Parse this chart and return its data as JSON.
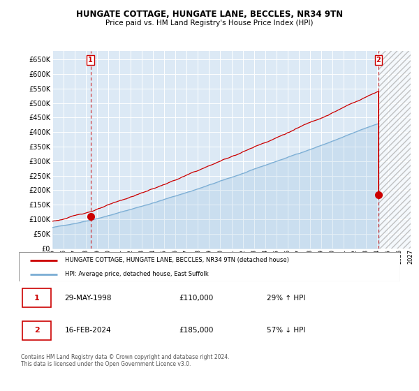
{
  "title": "HUNGATE COTTAGE, HUNGATE LANE, BECCLES, NR34 9TN",
  "subtitle": "Price paid vs. HM Land Registry's House Price Index (HPI)",
  "ylim": [
    0,
    680000
  ],
  "yticks": [
    0,
    50000,
    100000,
    150000,
    200000,
    250000,
    300000,
    350000,
    400000,
    450000,
    500000,
    550000,
    600000,
    650000
  ],
  "xlim": [
    1995.0,
    2027.0
  ],
  "background_color": "#ffffff",
  "plot_bg_color": "#dce9f5",
  "grid_color": "#ffffff",
  "sale1": {
    "date": "29-MAY-1998",
    "price": 110000,
    "hpi_pct": "29% ↑ HPI",
    "label": "1"
  },
  "sale2": {
    "date": "16-FEB-2024",
    "price": 185000,
    "hpi_pct": "57% ↓ HPI",
    "label": "2"
  },
  "legend_property": "HUNGATE COTTAGE, HUNGATE LANE, BECCLES, NR34 9TN (detached house)",
  "legend_hpi": "HPI: Average price, detached house, East Suffolk",
  "property_color": "#cc0000",
  "hpi_color": "#7aadd4",
  "marker1_x": 1998.41,
  "marker1_y": 110000,
  "marker2_x": 2024.12,
  "marker2_y": 185000,
  "hatch_start": 2024.12,
  "footnote": "Contains HM Land Registry data © Crown copyright and database right 2024.\nThis data is licensed under the Open Government Licence v3.0."
}
